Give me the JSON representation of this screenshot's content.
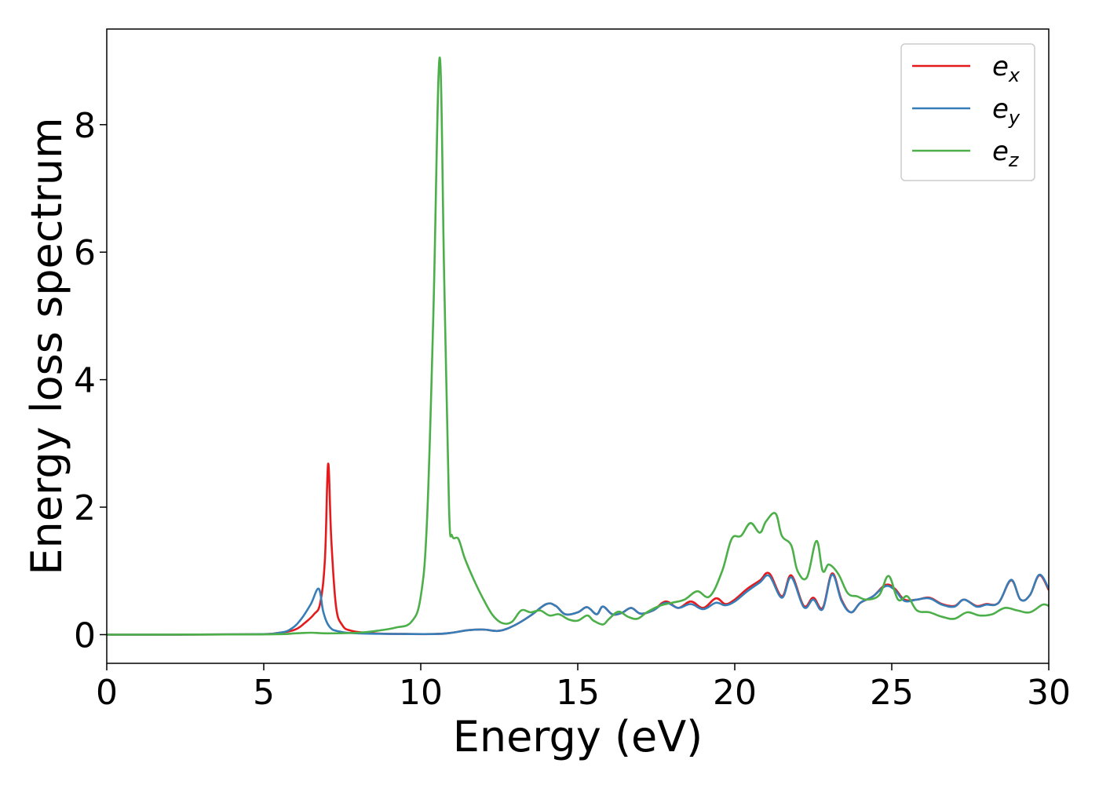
{
  "chart_data": {
    "type": "line",
    "title": "",
    "xlabel": "Energy (eV)",
    "ylabel": "Energy loss spectrum",
    "xlim": [
      0,
      30
    ],
    "ylim": [
      -0.45,
      9.5
    ],
    "xticks": [
      0,
      5,
      10,
      15,
      20,
      25,
      30
    ],
    "yticks": [
      0,
      2,
      4,
      6,
      8
    ],
    "grid": false,
    "legend_position": "top-right",
    "series": [
      {
        "name": "e_x",
        "legend_base": "e",
        "legend_sub": "x",
        "color": "#e41a1c",
        "points": [
          [
            0,
            0
          ],
          [
            4.5,
            0.005
          ],
          [
            5.5,
            0.03
          ],
          [
            6.0,
            0.08
          ],
          [
            6.3,
            0.18
          ],
          [
            6.6,
            0.32
          ],
          [
            6.8,
            0.5
          ],
          [
            6.95,
            1.2
          ],
          [
            7.05,
            2.68
          ],
          [
            7.15,
            1.5
          ],
          [
            7.3,
            0.45
          ],
          [
            7.5,
            0.15
          ],
          [
            7.8,
            0.06
          ],
          [
            8.5,
            0.02
          ],
          [
            9.5,
            0.01
          ],
          [
            10.5,
            0.01
          ],
          [
            11.0,
            0.03
          ],
          [
            11.5,
            0.07
          ],
          [
            12.0,
            0.08
          ],
          [
            12.5,
            0.06
          ],
          [
            13.0,
            0.15
          ],
          [
            13.5,
            0.3
          ],
          [
            14.0,
            0.48
          ],
          [
            14.3,
            0.45
          ],
          [
            14.6,
            0.32
          ],
          [
            15.0,
            0.35
          ],
          [
            15.3,
            0.43
          ],
          [
            15.6,
            0.32
          ],
          [
            15.8,
            0.44
          ],
          [
            16.1,
            0.32
          ],
          [
            16.4,
            0.34
          ],
          [
            16.7,
            0.42
          ],
          [
            17.0,
            0.33
          ],
          [
            17.4,
            0.38
          ],
          [
            17.8,
            0.52
          ],
          [
            18.2,
            0.42
          ],
          [
            18.6,
            0.52
          ],
          [
            19.0,
            0.42
          ],
          [
            19.4,
            0.57
          ],
          [
            19.7,
            0.48
          ],
          [
            20.0,
            0.55
          ],
          [
            20.4,
            0.72
          ],
          [
            20.8,
            0.85
          ],
          [
            21.1,
            0.96
          ],
          [
            21.5,
            0.6
          ],
          [
            21.8,
            0.93
          ],
          [
            22.2,
            0.45
          ],
          [
            22.5,
            0.58
          ],
          [
            22.8,
            0.42
          ],
          [
            23.1,
            0.96
          ],
          [
            23.4,
            0.55
          ],
          [
            23.7,
            0.35
          ],
          [
            24.0,
            0.5
          ],
          [
            24.4,
            0.6
          ],
          [
            24.8,
            0.78
          ],
          [
            25.1,
            0.72
          ],
          [
            25.4,
            0.55
          ],
          [
            25.8,
            0.55
          ],
          [
            26.2,
            0.58
          ],
          [
            26.6,
            0.48
          ],
          [
            27.0,
            0.45
          ],
          [
            27.3,
            0.55
          ],
          [
            27.7,
            0.45
          ],
          [
            28.0,
            0.48
          ],
          [
            28.4,
            0.5
          ],
          [
            28.8,
            0.85
          ],
          [
            29.1,
            0.55
          ],
          [
            29.4,
            0.62
          ],
          [
            29.7,
            0.93
          ],
          [
            30.0,
            0.7
          ]
        ]
      },
      {
        "name": "e_y",
        "legend_base": "e",
        "legend_sub": "y",
        "color": "#377eb8",
        "points": [
          [
            0,
            0
          ],
          [
            4.5,
            0.005
          ],
          [
            5.5,
            0.03
          ],
          [
            5.9,
            0.1
          ],
          [
            6.2,
            0.25
          ],
          [
            6.5,
            0.48
          ],
          [
            6.75,
            0.72
          ],
          [
            6.9,
            0.35
          ],
          [
            7.1,
            0.12
          ],
          [
            7.4,
            0.05
          ],
          [
            8.0,
            0.02
          ],
          [
            9.5,
            0.01
          ],
          [
            10.5,
            0.01
          ],
          [
            11.0,
            0.03
          ],
          [
            11.5,
            0.07
          ],
          [
            12.0,
            0.08
          ],
          [
            12.5,
            0.06
          ],
          [
            13.0,
            0.15
          ],
          [
            13.5,
            0.3
          ],
          [
            14.0,
            0.48
          ],
          [
            14.3,
            0.45
          ],
          [
            14.6,
            0.32
          ],
          [
            15.0,
            0.35
          ],
          [
            15.3,
            0.43
          ],
          [
            15.6,
            0.32
          ],
          [
            15.8,
            0.44
          ],
          [
            16.1,
            0.32
          ],
          [
            16.4,
            0.34
          ],
          [
            16.7,
            0.42
          ],
          [
            17.0,
            0.33
          ],
          [
            17.4,
            0.38
          ],
          [
            17.8,
            0.5
          ],
          [
            18.2,
            0.42
          ],
          [
            18.6,
            0.48
          ],
          [
            19.0,
            0.4
          ],
          [
            19.4,
            0.5
          ],
          [
            19.7,
            0.46
          ],
          [
            20.0,
            0.52
          ],
          [
            20.4,
            0.68
          ],
          [
            20.8,
            0.82
          ],
          [
            21.1,
            0.92
          ],
          [
            21.5,
            0.58
          ],
          [
            21.8,
            0.9
          ],
          [
            22.2,
            0.43
          ],
          [
            22.5,
            0.55
          ],
          [
            22.8,
            0.4
          ],
          [
            23.1,
            0.94
          ],
          [
            23.4,
            0.53
          ],
          [
            23.7,
            0.35
          ],
          [
            24.0,
            0.5
          ],
          [
            24.4,
            0.6
          ],
          [
            24.8,
            0.76
          ],
          [
            25.1,
            0.7
          ],
          [
            25.4,
            0.53
          ],
          [
            25.8,
            0.55
          ],
          [
            26.2,
            0.57
          ],
          [
            26.6,
            0.47
          ],
          [
            27.0,
            0.44
          ],
          [
            27.3,
            0.55
          ],
          [
            27.7,
            0.44
          ],
          [
            28.0,
            0.47
          ],
          [
            28.4,
            0.5
          ],
          [
            28.8,
            0.86
          ],
          [
            29.1,
            0.55
          ],
          [
            29.4,
            0.62
          ],
          [
            29.7,
            0.94
          ],
          [
            30.0,
            0.72
          ]
        ]
      },
      {
        "name": "e_z",
        "legend_base": "e",
        "legend_sub": "z",
        "color": "#4daf4a",
        "points": [
          [
            0,
            0
          ],
          [
            5.0,
            0.005
          ],
          [
            6.0,
            0.02
          ],
          [
            6.5,
            0.03
          ],
          [
            7.0,
            0.02
          ],
          [
            8.0,
            0.03
          ],
          [
            8.6,
            0.06
          ],
          [
            9.2,
            0.11
          ],
          [
            9.7,
            0.2
          ],
          [
            10.0,
            0.6
          ],
          [
            10.2,
            1.8
          ],
          [
            10.4,
            5.0
          ],
          [
            10.6,
            9.05
          ],
          [
            10.75,
            5.5
          ],
          [
            10.9,
            2.0
          ],
          [
            11.0,
            1.55
          ],
          [
            11.2,
            1.5
          ],
          [
            11.4,
            1.2
          ],
          [
            11.7,
            0.85
          ],
          [
            12.0,
            0.55
          ],
          [
            12.3,
            0.3
          ],
          [
            12.6,
            0.18
          ],
          [
            12.9,
            0.2
          ],
          [
            13.2,
            0.38
          ],
          [
            13.5,
            0.35
          ],
          [
            13.8,
            0.38
          ],
          [
            14.1,
            0.3
          ],
          [
            14.4,
            0.32
          ],
          [
            14.7,
            0.24
          ],
          [
            15.0,
            0.22
          ],
          [
            15.3,
            0.3
          ],
          [
            15.5,
            0.22
          ],
          [
            15.8,
            0.16
          ],
          [
            16.0,
            0.25
          ],
          [
            16.3,
            0.36
          ],
          [
            16.6,
            0.28
          ],
          [
            16.9,
            0.25
          ],
          [
            17.2,
            0.35
          ],
          [
            17.6,
            0.45
          ],
          [
            18.0,
            0.5
          ],
          [
            18.4,
            0.55
          ],
          [
            18.8,
            0.68
          ],
          [
            19.2,
            0.6
          ],
          [
            19.6,
            1.0
          ],
          [
            19.9,
            1.5
          ],
          [
            20.2,
            1.55
          ],
          [
            20.5,
            1.75
          ],
          [
            20.8,
            1.6
          ],
          [
            21.0,
            1.78
          ],
          [
            21.3,
            1.9
          ],
          [
            21.5,
            1.55
          ],
          [
            21.8,
            1.4
          ],
          [
            22.0,
            1.0
          ],
          [
            22.3,
            0.9
          ],
          [
            22.6,
            1.47
          ],
          [
            22.8,
            1.0
          ],
          [
            23.0,
            1.1
          ],
          [
            23.3,
            0.95
          ],
          [
            23.6,
            0.65
          ],
          [
            23.9,
            0.6
          ],
          [
            24.2,
            0.55
          ],
          [
            24.6,
            0.62
          ],
          [
            24.9,
            0.92
          ],
          [
            25.2,
            0.55
          ],
          [
            25.5,
            0.6
          ],
          [
            25.8,
            0.38
          ],
          [
            26.2,
            0.35
          ],
          [
            26.6,
            0.28
          ],
          [
            27.0,
            0.25
          ],
          [
            27.4,
            0.35
          ],
          [
            27.8,
            0.3
          ],
          [
            28.2,
            0.32
          ],
          [
            28.6,
            0.42
          ],
          [
            29.0,
            0.38
          ],
          [
            29.4,
            0.35
          ],
          [
            29.8,
            0.47
          ],
          [
            30.0,
            0.45
          ]
        ]
      }
    ]
  }
}
